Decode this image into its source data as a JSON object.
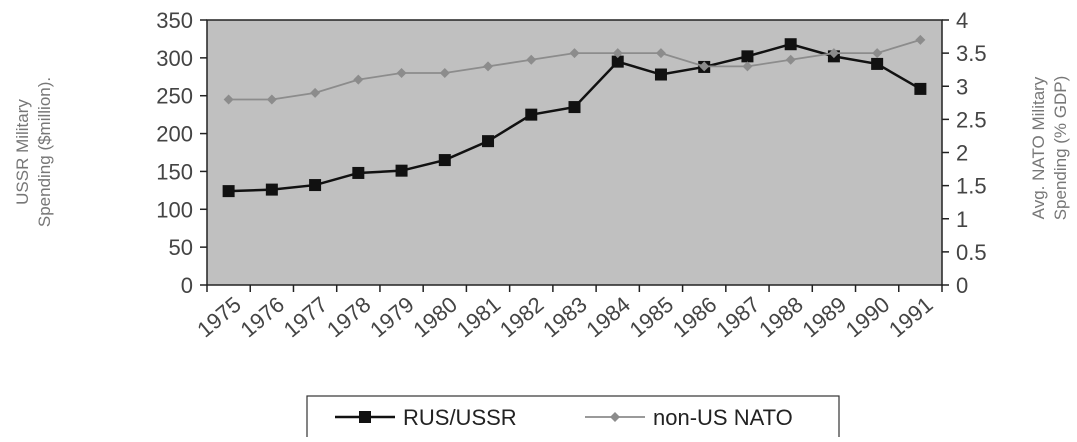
{
  "chart_data": {
    "type": "line",
    "title": "",
    "categories": [
      "1975",
      "1976",
      "1977",
      "1978",
      "1979",
      "1980",
      "1981",
      "1982",
      "1983",
      "1984",
      "1985",
      "1986",
      "1987",
      "1988",
      "1989",
      "1990",
      "1991"
    ],
    "y_left": {
      "label_lines": [
        "USSR Military",
        "Spending ($million)."
      ],
      "lim": [
        0,
        350
      ],
      "ticks": [
        0,
        50,
        100,
        150,
        200,
        250,
        300,
        350
      ]
    },
    "y_right": {
      "label_lines": [
        "Avg. NATO Military",
        "Spending  (% GDP)"
      ],
      "lim": [
        0,
        4
      ],
      "ticks": [
        "0",
        "0.5",
        "1",
        "1.5",
        "2",
        "2.5",
        "3",
        "3.5",
        "4"
      ]
    },
    "series": [
      {
        "name": "RUS/USSR",
        "axis": "left",
        "marker": "square",
        "color": "#111111",
        "values": [
          124,
          126,
          132,
          148,
          151,
          165,
          190,
          225,
          235,
          295,
          278,
          288,
          302,
          318,
          302,
          292,
          259
        ]
      },
      {
        "name": "non-US NATO",
        "axis": "right",
        "marker": "diamond",
        "color": "#8c8c8c",
        "values": [
          2.8,
          2.8,
          2.9,
          3.1,
          3.2,
          3.2,
          3.3,
          3.4,
          3.5,
          3.5,
          3.5,
          3.3,
          3.3,
          3.4,
          3.5,
          3.5,
          3.7
        ]
      }
    ],
    "grid": false,
    "plot_background": "#c0c0c0",
    "legend_position": "bottom"
  }
}
